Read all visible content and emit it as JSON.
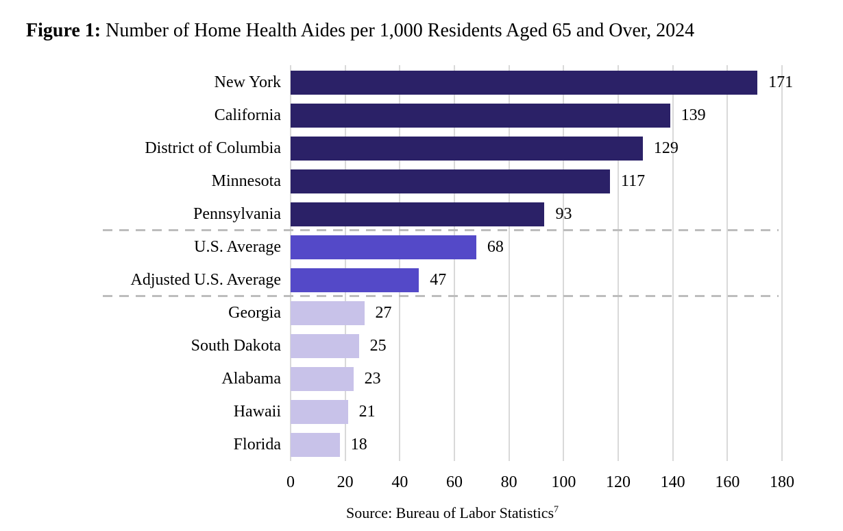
{
  "figure": {
    "title_prefix": "Figure 1:",
    "title_rest": " Number of Home Health Aides per 1,000 Residents Aged 65 and Over, 2024",
    "source_text": "Source: Bureau of Labor Statistics",
    "source_superscript": "7"
  },
  "chart_data": {
    "type": "bar",
    "orientation": "horizontal",
    "title": "Figure 1: Number of Home Health Aides per 1,000 Residents Aged 65 and Over, 2024",
    "categories": [
      "New York",
      "California",
      "District of Columbia",
      "Minnesota",
      "Pennsylvania",
      "U.S. Average",
      "Adjusted U.S. Average",
      "Georgia",
      "South Dakota",
      "Alabama",
      "Hawaii",
      "Florida"
    ],
    "values": [
      171,
      139,
      129,
      117,
      93,
      68,
      47,
      27,
      25,
      23,
      21,
      18
    ],
    "bar_groups": [
      "state_high",
      "state_high",
      "state_high",
      "state_high",
      "state_high",
      "average",
      "average",
      "state_low",
      "state_low",
      "state_low",
      "state_low",
      "state_low"
    ],
    "colors": {
      "state_high": "#2b2167",
      "average": "#5449c8",
      "state_low": "#c8c2e9"
    },
    "xlim": [
      0,
      180
    ],
    "x_ticks": [
      0,
      20,
      40,
      60,
      80,
      100,
      120,
      140,
      160,
      180
    ],
    "grid": true,
    "gridline_color": "#d9d9d9",
    "separator_color": "#bdbdbd",
    "legend": "none",
    "value_labels": "end-of-bar",
    "source": "Source: Bureau of Labor Statistics"
  }
}
